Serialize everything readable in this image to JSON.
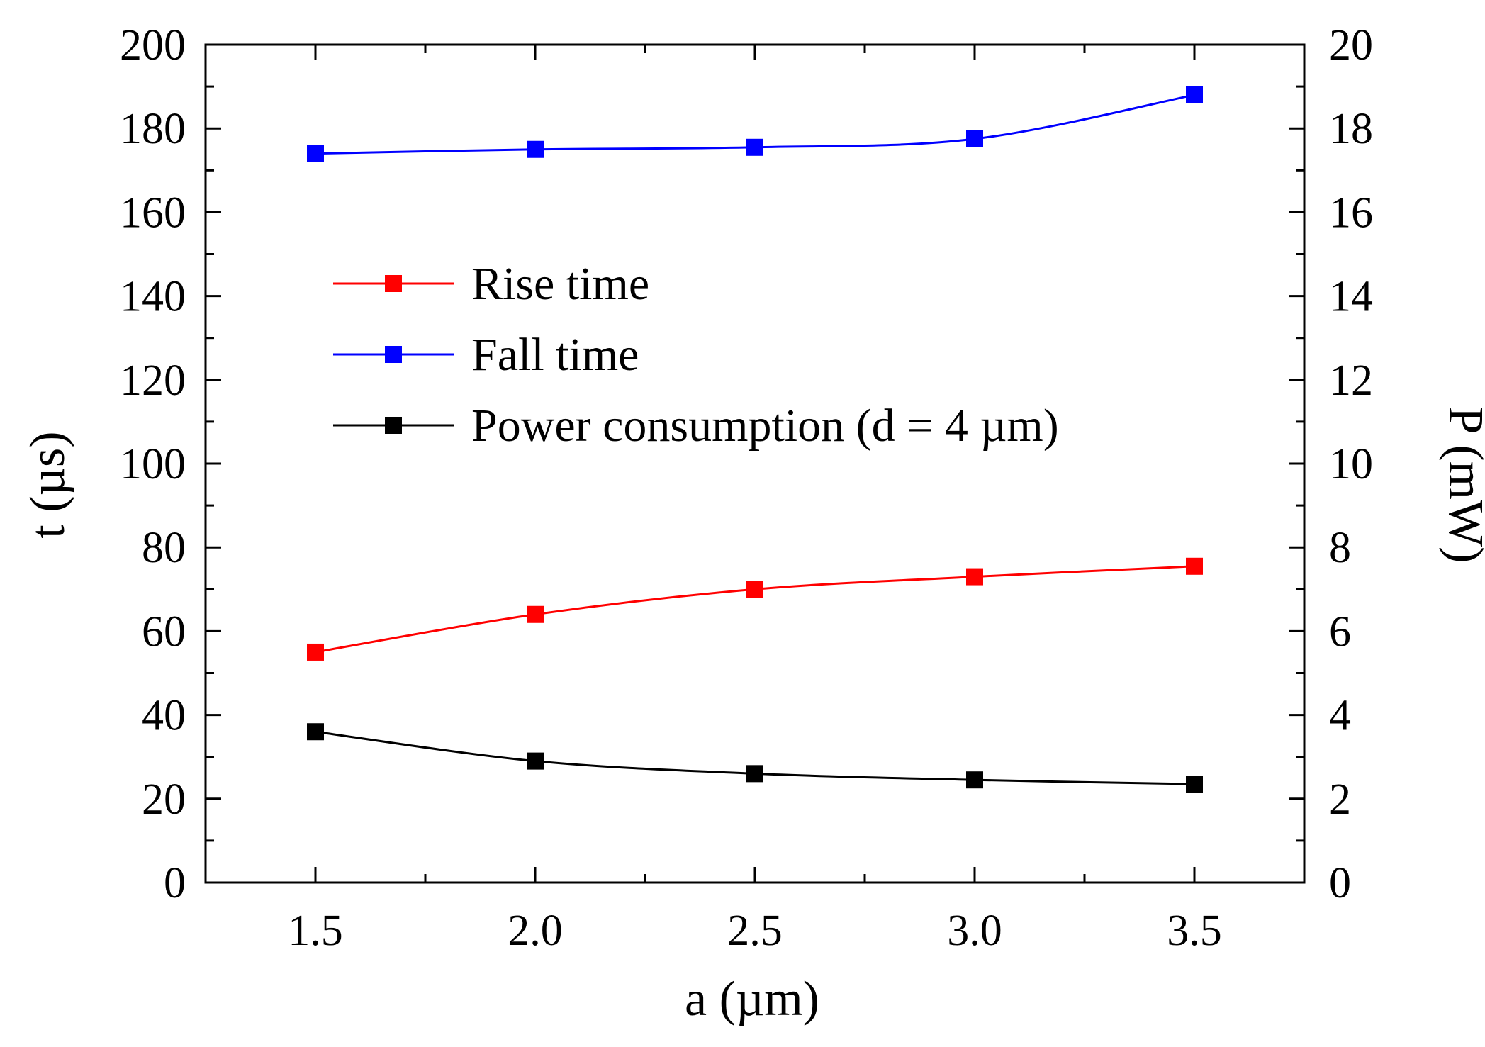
{
  "chart_data": {
    "type": "line",
    "title": "",
    "xlabel": "a (µm)",
    "ylabel": "t (µs)",
    "ylabel_right": "P (mW)",
    "xlim": [
      1.25,
      3.75
    ],
    "ylim": [
      0,
      200
    ],
    "ylim_right": [
      0,
      20
    ],
    "x_ticks": [
      1.5,
      2.0,
      2.5,
      3.0,
      3.5
    ],
    "x_tick_labels": [
      "1.5",
      "2.0",
      "2.5",
      "3.0",
      "3.5"
    ],
    "y_ticks": [
      0,
      20,
      40,
      60,
      80,
      100,
      120,
      140,
      160,
      180,
      200
    ],
    "y_tick_labels": [
      "0",
      "20",
      "40",
      "60",
      "80",
      "100",
      "120",
      "140",
      "160",
      "180",
      "200"
    ],
    "y_right_ticks": [
      0,
      2,
      4,
      6,
      8,
      10,
      12,
      14,
      16,
      18,
      20
    ],
    "y_right_tick_labels": [
      "0",
      "2",
      "4",
      "6",
      "8",
      "10",
      "12",
      "14",
      "16",
      "18",
      "20"
    ],
    "x": [
      1.5,
      2.0,
      2.5,
      3.0,
      3.5
    ],
    "grid": false,
    "legend_position": "center-left",
    "series": [
      {
        "name": "Rise time",
        "axis": "left",
        "color": "#ff0000",
        "marker": "square",
        "values": [
          55,
          64,
          70,
          73,
          75.5
        ]
      },
      {
        "name": "Fall time",
        "axis": "left",
        "color": "#0000ff",
        "marker": "square",
        "values": [
          174,
          175,
          175.5,
          177.5,
          188
        ]
      },
      {
        "name": "Power consumption (d = 4 µm)",
        "axis": "right",
        "color": "#000000",
        "marker": "square",
        "values": [
          3.6,
          2.9,
          2.6,
          2.45,
          2.35
        ]
      }
    ]
  }
}
